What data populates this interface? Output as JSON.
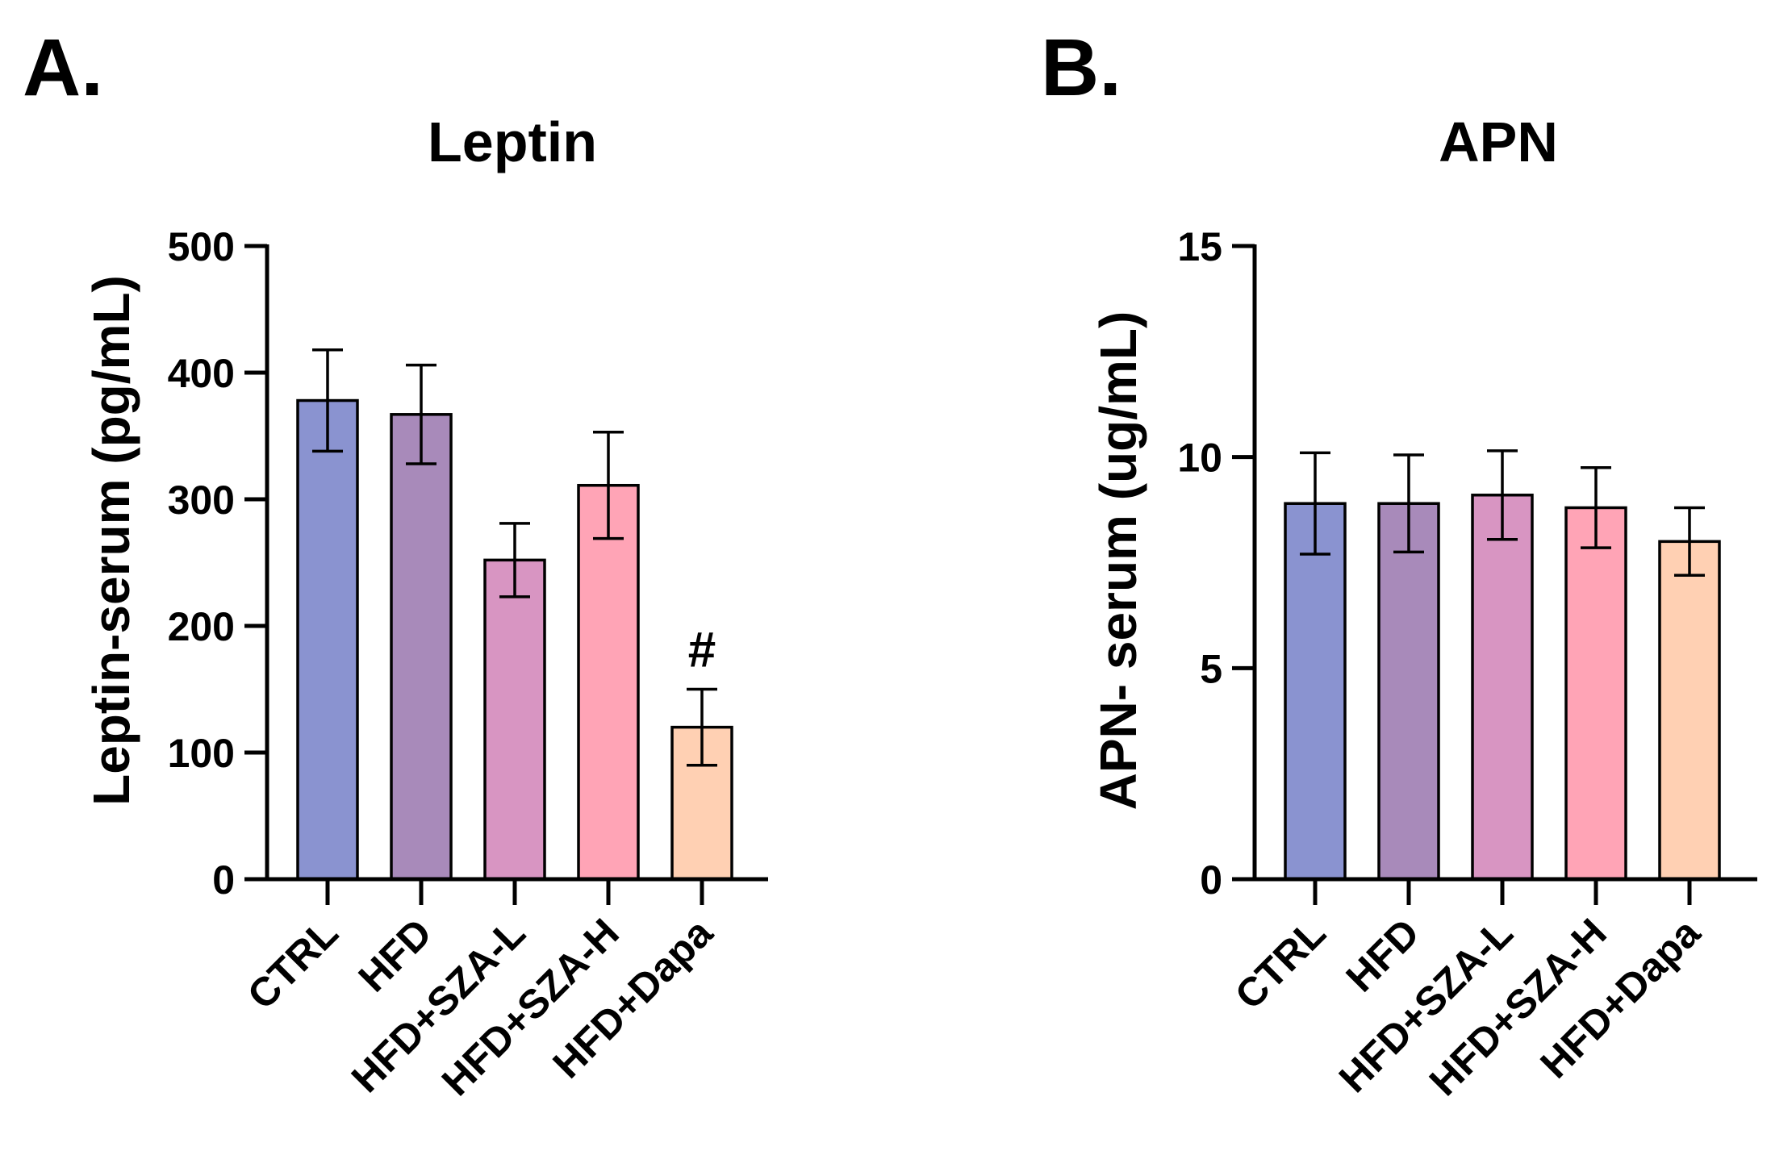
{
  "figure": {
    "panels": [
      {
        "letter": "A."
      },
      {
        "letter": "B."
      }
    ]
  },
  "colors": {
    "CTRL": "#8A93D0",
    "HFD": "#A88ABA",
    "HFD+SZA-L": "#D895C2",
    "HFD+SZA-H": "#FFA4B6",
    "HFD+Dapa": "#FFD0B3",
    "axis": "#000000",
    "bar_edge": "#000000"
  },
  "chart_data": [
    {
      "type": "bar",
      "title": "Leptin",
      "xlabel": "",
      "ylabel": "Leptin-serum (pg/mL)",
      "ylim": [
        0,
        500
      ],
      "yticks": [
        0,
        100,
        200,
        300,
        400,
        500
      ],
      "ytick_labels": [
        "0",
        "100",
        "200",
        "300",
        "400",
        "500"
      ],
      "categories": [
        "CTRL",
        "HFD",
        "HFD+SZA-L",
        "HFD+SZA-H",
        "HFD+Dapa"
      ],
      "values": [
        378,
        367,
        252,
        311,
        120
      ],
      "errors": [
        40,
        39,
        29,
        42,
        30
      ],
      "annotations": [
        "",
        "",
        "",
        "",
        "#"
      ],
      "grid": false,
      "legend": "none"
    },
    {
      "type": "bar",
      "title": "APN",
      "xlabel": "",
      "ylabel": "APN- serum (ug/mL)",
      "ylim": [
        0,
        15
      ],
      "yticks": [
        0,
        5,
        10,
        15
      ],
      "ytick_labels": [
        "0",
        "5",
        "10",
        "15"
      ],
      "categories": [
        "CTRL",
        "HFD",
        "HFD+SZA-L",
        "HFD+SZA-H",
        "HFD+Dapa"
      ],
      "values": [
        8.9,
        8.9,
        9.1,
        8.8,
        8.0
      ],
      "errors": [
        1.2,
        1.15,
        1.05,
        0.95,
        0.8
      ],
      "annotations": [
        "",
        "",
        "",
        "",
        ""
      ],
      "grid": false,
      "legend": "none"
    }
  ]
}
